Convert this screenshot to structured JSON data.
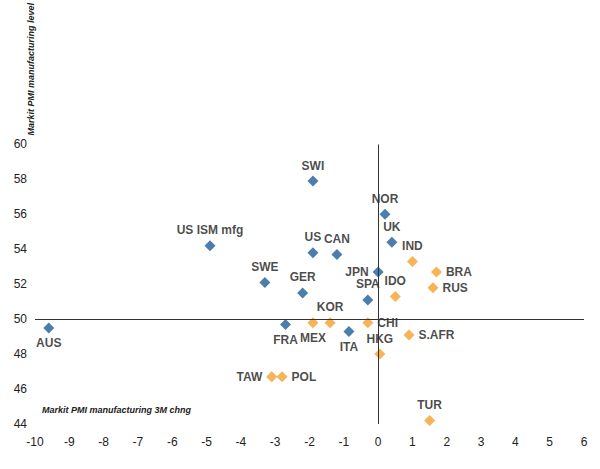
{
  "chart_data": {
    "type": "scatter",
    "xlabel": "Markit PMI manufacturing 3M chng",
    "ylabel": "Markit PMI manufacturing level",
    "labels": [
      "AUS",
      "US ISM mfg",
      "SWI",
      "NOR",
      "US",
      "CAN",
      "UK",
      "IND",
      "BRA",
      "JPN",
      "RUS",
      "SWE",
      "GER",
      "SPA",
      "IDO",
      "KOR",
      "MEX",
      "FRA",
      "ITA",
      "CHI",
      "S.AFR",
      "HKG",
      "TAW",
      "POL",
      "TUR"
    ],
    "x": [
      -9.6,
      -4.9,
      -1.9,
      0.2,
      -1.9,
      -1.2,
      0.4,
      1.0,
      1.7,
      0.0,
      1.6,
      -3.3,
      -2.2,
      -0.3,
      0.5,
      -1.4,
      -1.9,
      -2.7,
      -0.85,
      -0.3,
      0.9,
      0.05,
      -3.1,
      -2.8,
      1.5
    ],
    "values": [
      49.5,
      54.2,
      57.9,
      56.0,
      53.8,
      53.7,
      54.4,
      53.3,
      52.7,
      52.7,
      51.8,
      52.1,
      51.5,
      51.1,
      51.3,
      49.8,
      49.8,
      49.7,
      49.3,
      49.8,
      49.1,
      48.0,
      46.7,
      46.7,
      44.2
    ],
    "colors": [
      "#1f5c99",
      "#1f5c99",
      "#1f5c99",
      "#1f5c99",
      "#1f5c99",
      "#1f5c99",
      "#1f5c99",
      "#f5a02c",
      "#f5a02c",
      "#1f5c99",
      "#f5a02c",
      "#1f5c99",
      "#1f5c99",
      "#1f5c99",
      "#f5a02c",
      "#f5a02c",
      "#f5a02c",
      "#1f5c99",
      "#1f5c99",
      "#f5a02c",
      "#f5a02c",
      "#f5a02c",
      "#f5a02c",
      "#f5a02c",
      "#f5a02c"
    ],
    "marker": "diamond",
    "xlim": [
      -10,
      6
    ],
    "xticks": [
      -10,
      -9,
      -8,
      -7,
      -6,
      -5,
      -4,
      -3,
      -2,
      -1,
      0,
      1,
      2,
      3,
      4,
      5,
      6
    ],
    "ylim": [
      44,
      60
    ],
    "yticks": [
      44,
      46,
      48,
      50,
      52,
      54,
      56,
      58,
      60
    ],
    "hlines": [
      50
    ],
    "vlines": [
      0
    ],
    "grid": false
  }
}
